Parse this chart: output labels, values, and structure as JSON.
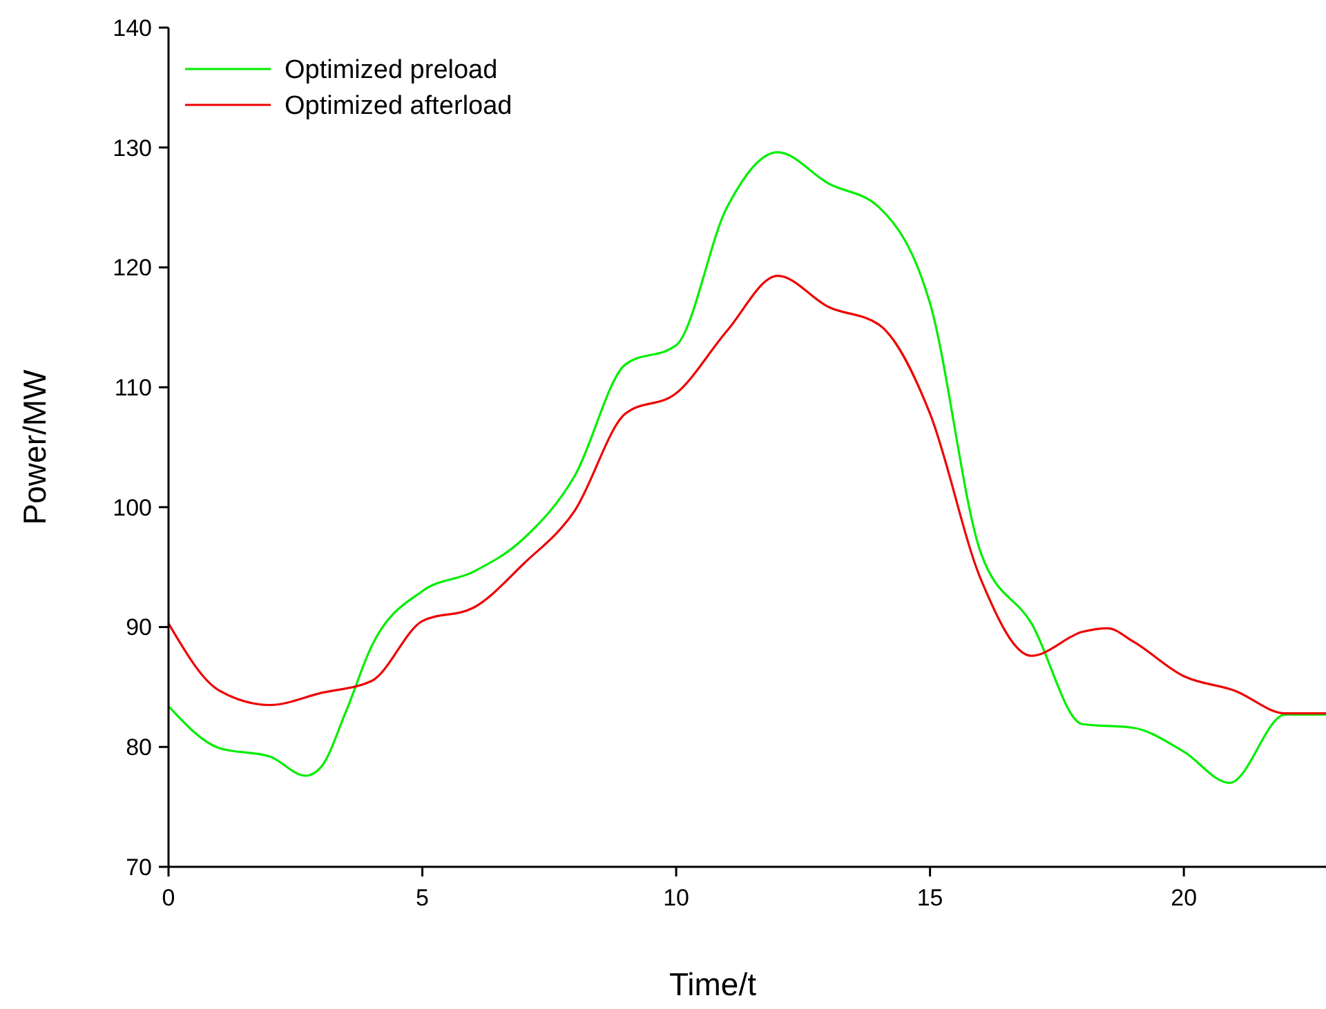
{
  "chart_data": {
    "type": "line",
    "xlabel": "Time/t",
    "ylabel": "Power/MW",
    "xlim": [
      0,
      22.8
    ],
    "ylim": [
      70,
      140
    ],
    "xticks": [
      0,
      5,
      10,
      15,
      20
    ],
    "yticks": [
      70,
      80,
      90,
      100,
      110,
      120,
      130,
      140
    ],
    "legend": "top left",
    "grid": false,
    "marker": "none",
    "line_style": "solid",
    "series": [
      {
        "name": "Optimized preload",
        "color": "#00ee00",
        "x": [
          0,
          1,
          2,
          2.7,
          3,
          3.5,
          4,
          5,
          6,
          7,
          8,
          9,
          10,
          11,
          12,
          13,
          14,
          15,
          16,
          17,
          18,
          19,
          20,
          20.9,
          22,
          22.8
        ],
        "values": [
          83.4,
          79.9,
          79.2,
          77.6,
          78.3,
          83,
          88.4,
          93,
          94.6,
          97.4,
          102.6,
          111.9,
          113.5,
          125,
          129.6,
          127,
          125,
          117,
          96.2,
          90.3,
          81.9,
          81.6,
          79.6,
          77,
          82.7,
          82.7
        ]
      },
      {
        "name": "Optimized afterload",
        "color": "#ee0000",
        "x": [
          0,
          1,
          2,
          3,
          4,
          5,
          6,
          7,
          8,
          9,
          10,
          11,
          12,
          13,
          14,
          15,
          16,
          17,
          18,
          18.5,
          19,
          20,
          21,
          22,
          22.8
        ],
        "values": [
          90.3,
          84.7,
          83.5,
          84.5,
          85.5,
          90.5,
          91.6,
          95.3,
          99.7,
          107.8,
          109.5,
          114.7,
          119.3,
          116.7,
          115.2,
          107.8,
          94,
          87.6,
          89.6,
          89.9,
          88.8,
          85.9,
          84.7,
          82.8,
          82.8
        ]
      }
    ]
  }
}
